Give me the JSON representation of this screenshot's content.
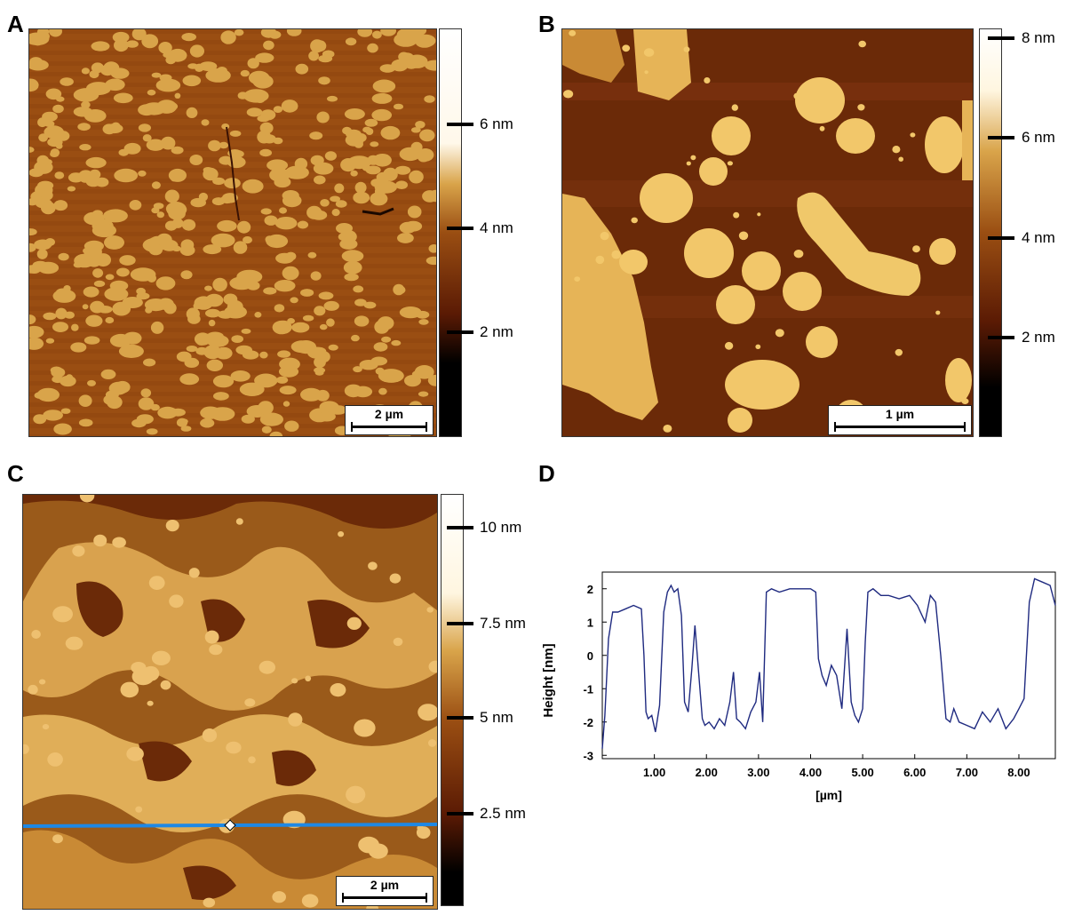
{
  "panels": {
    "a": {
      "letter": "A",
      "colorbar_ticks": [
        "6 nm",
        "4 nm",
        "2 nm"
      ],
      "scale_bar": "2 µm"
    },
    "b": {
      "letter": "B",
      "colorbar_ticks": [
        "8 nm",
        "6 nm",
        "4 nm",
        "2 nm"
      ],
      "scale_bar": "1 µm"
    },
    "c": {
      "letter": "C",
      "colorbar_ticks": [
        "10 nm",
        "7.5 nm",
        "5 nm",
        "2.5 nm"
      ],
      "scale_bar": "2 µm"
    },
    "d": {
      "letter": "D"
    }
  },
  "colors": {
    "afm_dark": "#6b2a08",
    "afm_mid": "#9a4e12",
    "afm_bright": "#e8bb5e",
    "profile_line": "#1e88e5",
    "plot_line": "#1f2a80"
  },
  "chart_data": {
    "type": "line",
    "title": "",
    "xlabel": "[µm]",
    "ylabel": "Height  [nm]",
    "xlim": [
      0,
      8.7
    ],
    "ylim": [
      -3.1,
      2.5
    ],
    "xticks": [
      "1.00",
      "2.00",
      "3.00",
      "4.00",
      "5.00",
      "6.00",
      "7.00",
      "8.00"
    ],
    "yticks": [
      "2",
      "1",
      "0",
      "-1",
      "-2",
      "-3"
    ],
    "grid": false,
    "series": [
      {
        "x": [
          0.0,
          0.05,
          0.12,
          0.2,
          0.3,
          0.45,
          0.6,
          0.75,
          0.8,
          0.84,
          0.88,
          0.95,
          1.02,
          1.1,
          1.18,
          1.25,
          1.32,
          1.38,
          1.45,
          1.52,
          1.58,
          1.65,
          1.72,
          1.78,
          1.85,
          1.92,
          1.97,
          2.05,
          2.15,
          2.25,
          2.35,
          2.45,
          2.52,
          2.58,
          2.65,
          2.75,
          2.85,
          2.95,
          3.02,
          3.08,
          3.15,
          3.25,
          3.4,
          3.6,
          3.8,
          4.0,
          4.1,
          4.15,
          4.22,
          4.3,
          4.4,
          4.5,
          4.6,
          4.7,
          4.78,
          4.85,
          4.92,
          5.0,
          5.05,
          5.1,
          5.2,
          5.35,
          5.5,
          5.7,
          5.9,
          6.05,
          6.2,
          6.3,
          6.4,
          6.5,
          6.6,
          6.68,
          6.75,
          6.85,
          7.0,
          7.15,
          7.3,
          7.45,
          7.6,
          7.75,
          7.9,
          8.0,
          8.1,
          8.2,
          8.3,
          8.45,
          8.6,
          8.7
        ],
        "y": [
          -2.8,
          -1.8,
          0.5,
          1.3,
          1.3,
          1.4,
          1.5,
          1.4,
          0.0,
          -1.7,
          -1.9,
          -1.8,
          -2.3,
          -1.5,
          1.3,
          1.9,
          2.1,
          1.9,
          2.0,
          1.2,
          -1.4,
          -1.7,
          -0.4,
          0.9,
          -0.5,
          -1.9,
          -2.1,
          -2.0,
          -2.2,
          -1.9,
          -2.1,
          -1.4,
          -0.5,
          -1.9,
          -2.0,
          -2.2,
          -1.7,
          -1.4,
          -0.5,
          -2.0,
          1.9,
          2.0,
          1.9,
          2.0,
          2.0,
          2.0,
          1.9,
          -0.1,
          -0.6,
          -0.9,
          -0.3,
          -0.6,
          -1.6,
          0.8,
          -1.4,
          -1.8,
          -2.0,
          -1.6,
          0.4,
          1.9,
          2.0,
          1.8,
          1.8,
          1.7,
          1.8,
          1.5,
          1.0,
          1.8,
          1.6,
          0.0,
          -1.9,
          -2.0,
          -1.6,
          -2.0,
          -2.1,
          -2.2,
          -1.7,
          -2.0,
          -1.6,
          -2.2,
          -1.9,
          -1.6,
          -1.3,
          1.6,
          2.3,
          2.2,
          2.1,
          1.5
        ]
      }
    ]
  }
}
